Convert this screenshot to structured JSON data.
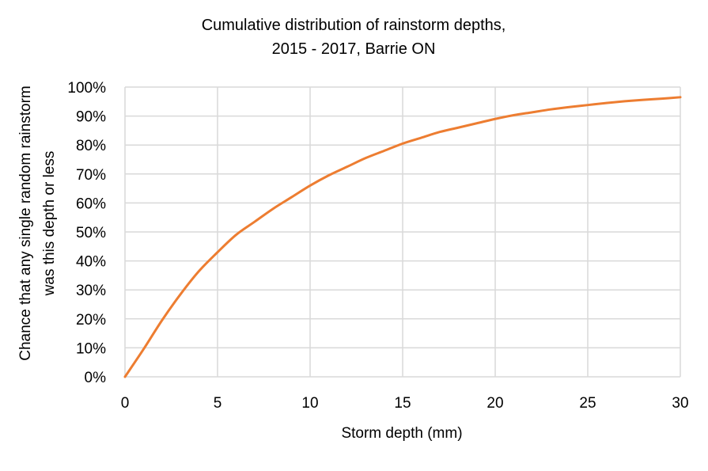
{
  "chart_data": {
    "type": "line",
    "title_lines": [
      "Cumulative distribution of rainstorm depths,",
      "2015 - 2017, Barrie ON"
    ],
    "xlabel": "Storm depth (mm)",
    "ylabel_lines": [
      "Chance that any single random rainstorm",
      "was this depth or less"
    ],
    "xlim": [
      0,
      30
    ],
    "ylim": [
      0,
      100
    ],
    "x_ticks": [
      0,
      5,
      10,
      15,
      20,
      25,
      30
    ],
    "x_tick_labels": [
      "0",
      "5",
      "10",
      "15",
      "20",
      "25",
      "30"
    ],
    "y_ticks": [
      0,
      10,
      20,
      30,
      40,
      50,
      60,
      70,
      80,
      90,
      100
    ],
    "y_tick_labels": [
      "0%",
      "10%",
      "20%",
      "30%",
      "40%",
      "50%",
      "60%",
      "70%",
      "80%",
      "90%",
      "100%"
    ],
    "grid": true,
    "series": [
      {
        "name": "Cumulative distribution",
        "color": "#ed7d31",
        "x": [
          0,
          1,
          2,
          3,
          4,
          5,
          6,
          7,
          8,
          9,
          10,
          11,
          12,
          13,
          14,
          15,
          16,
          17,
          18,
          19,
          20,
          21,
          22,
          23,
          24,
          25,
          26,
          27,
          28,
          29,
          30
        ],
        "y": [
          0,
          9.5,
          19.5,
          28.5,
          36.5,
          43,
          49,
          53.5,
          58,
          62,
          66,
          69.5,
          72.5,
          75.5,
          78,
          80.5,
          82.5,
          84.5,
          86,
          87.5,
          89,
          90.3,
          91.3,
          92.3,
          93.1,
          93.8,
          94.5,
          95.1,
          95.6,
          96,
          96.5
        ]
      }
    ]
  }
}
